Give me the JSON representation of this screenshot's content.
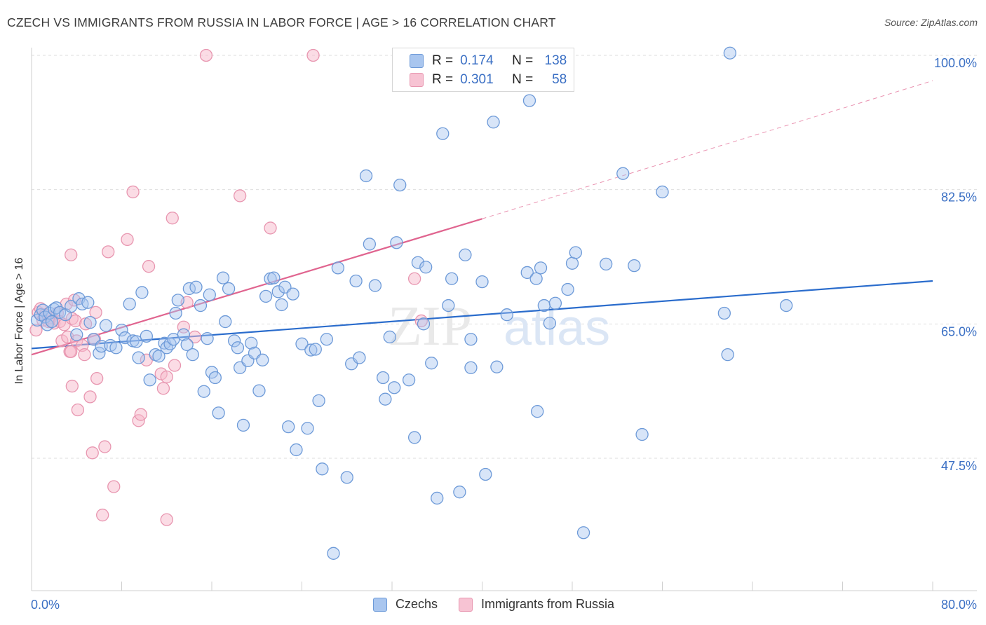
{
  "title": "CZECH VS IMMIGRANTS FROM RUSSIA IN LABOR FORCE | AGE > 16 CORRELATION CHART",
  "source": "Source: ZipAtlas.com",
  "watermark": {
    "zip": "ZIP",
    "atlas": "atlas"
  },
  "colors": {
    "czech_fill": "#a9c6ef",
    "czech_stroke": "#6d9ad8",
    "czech_line": "#2a6ccc",
    "russia_fill": "#f7b9cc",
    "russia_stroke": "#e896b0",
    "russia_line": "#e0648f",
    "tick_label": "#3a6fc4",
    "grid": "#dedede"
  },
  "legend": {
    "rows": [
      {
        "series": "Czechs",
        "r_label": "R =",
        "r_value": "0.174",
        "n_label": "N =",
        "n_value": "138"
      },
      {
        "series": "Immigrants from Russia",
        "r_label": "R =",
        "r_value": "0.301",
        "n_label": "N =",
        "n_value": "58"
      }
    ]
  },
  "bottom_legend": [
    "Czechs",
    "Immigrants from Russia"
  ],
  "chart_data": {
    "type": "scatter",
    "title": "CZECH VS IMMIGRANTS FROM RUSSIA IN LABOR FORCE | AGE > 16 CORRELATION CHART",
    "xlabel": "",
    "ylabel": "In Labor Force | Age > 16",
    "xlim": [
      0,
      80
    ],
    "ylim": [
      32,
      102
    ],
    "x_tick_labels": [
      "0.0%",
      "80.0%"
    ],
    "y_ticks": [
      47.5,
      65.0,
      82.5,
      100.0
    ],
    "y_tick_labels": [
      "47.5%",
      "65.0%",
      "82.5%",
      "100.0%"
    ],
    "grid": true,
    "legend_placement": "top-center",
    "series": [
      {
        "name": "Czechs",
        "trend": {
          "x": [
            0,
            80
          ],
          "y": [
            61.8,
            70.6
          ],
          "style": "solid"
        },
        "points": [
          [
            0.5,
            65.5
          ],
          [
            0.8,
            66.2
          ],
          [
            1.0,
            66.8
          ],
          [
            1.2,
            65.9
          ],
          [
            1.4,
            64.9
          ],
          [
            1.6,
            66.4
          ],
          [
            1.8,
            65.3
          ],
          [
            2.0,
            66.9
          ],
          [
            2.2,
            67.1
          ],
          [
            2.5,
            66.5
          ],
          [
            3.0,
            66.2
          ],
          [
            3.5,
            67.3
          ],
          [
            4.0,
            63.6
          ],
          [
            4.2,
            68.3
          ],
          [
            4.5,
            67.6
          ],
          [
            5.0,
            67.8
          ],
          [
            5.2,
            65.2
          ],
          [
            5.5,
            63.0
          ],
          [
            6.0,
            61.2
          ],
          [
            6.2,
            62.1
          ],
          [
            6.6,
            64.8
          ],
          [
            7.0,
            62.2
          ],
          [
            7.5,
            61.9
          ],
          [
            8.0,
            64.2
          ],
          [
            8.3,
            63.2
          ],
          [
            8.7,
            67.6
          ],
          [
            9.0,
            62.8
          ],
          [
            9.3,
            62.7
          ],
          [
            9.5,
            60.6
          ],
          [
            9.8,
            69.1
          ],
          [
            10.2,
            63.4
          ],
          [
            10.5,
            57.7
          ],
          [
            11.0,
            61.0
          ],
          [
            11.3,
            60.8
          ],
          [
            11.8,
            62.5
          ],
          [
            12.0,
            61.9
          ],
          [
            12.3,
            62.4
          ],
          [
            12.6,
            63.0
          ],
          [
            12.8,
            66.4
          ],
          [
            13.0,
            68.1
          ],
          [
            13.5,
            63.6
          ],
          [
            13.8,
            62.3
          ],
          [
            14.0,
            69.6
          ],
          [
            14.3,
            61.0
          ],
          [
            14.6,
            69.8
          ],
          [
            15.0,
            67.4
          ],
          [
            15.3,
            56.2
          ],
          [
            15.6,
            63.1
          ],
          [
            15.8,
            68.8
          ],
          [
            16.0,
            58.7
          ],
          [
            16.3,
            58.0
          ],
          [
            16.6,
            53.4
          ],
          [
            17.0,
            71.0
          ],
          [
            17.2,
            65.3
          ],
          [
            17.5,
            69.6
          ],
          [
            18.0,
            62.8
          ],
          [
            18.3,
            61.9
          ],
          [
            18.5,
            59.3
          ],
          [
            18.8,
            51.8
          ],
          [
            19.2,
            60.2
          ],
          [
            19.5,
            62.5
          ],
          [
            19.8,
            61.2
          ],
          [
            20.2,
            56.3
          ],
          [
            20.5,
            60.3
          ],
          [
            20.8,
            68.6
          ],
          [
            21.2,
            70.9
          ],
          [
            21.5,
            71.0
          ],
          [
            21.9,
            69.2
          ],
          [
            22.2,
            67.5
          ],
          [
            22.5,
            69.8
          ],
          [
            22.8,
            51.6
          ],
          [
            23.2,
            68.9
          ],
          [
            23.5,
            48.6
          ],
          [
            24.0,
            62.4
          ],
          [
            24.5,
            51.4
          ],
          [
            24.8,
            61.6
          ],
          [
            25.2,
            61.7
          ],
          [
            25.5,
            55.0
          ],
          [
            25.8,
            46.1
          ],
          [
            26.2,
            63.0
          ],
          [
            26.8,
            35.1
          ],
          [
            27.2,
            72.3
          ],
          [
            28.0,
            45.0
          ],
          [
            28.4,
            59.8
          ],
          [
            28.8,
            70.6
          ],
          [
            29.1,
            60.6
          ],
          [
            29.7,
            84.3
          ],
          [
            30.0,
            75.4
          ],
          [
            30.5,
            70.0
          ],
          [
            31.2,
            58.0
          ],
          [
            31.4,
            55.2
          ],
          [
            31.8,
            63.3
          ],
          [
            32.2,
            56.7
          ],
          [
            32.4,
            75.6
          ],
          [
            32.7,
            83.1
          ],
          [
            33.5,
            57.7
          ],
          [
            34.0,
            50.2
          ],
          [
            34.3,
            73.0
          ],
          [
            34.8,
            65.0
          ],
          [
            35.0,
            72.4
          ],
          [
            35.5,
            59.9
          ],
          [
            36.0,
            42.3
          ],
          [
            36.5,
            89.8
          ],
          [
            37.0,
            67.4
          ],
          [
            37.3,
            70.9
          ],
          [
            38.0,
            43.1
          ],
          [
            38.5,
            74.0
          ],
          [
            39.0,
            63.0
          ],
          [
            39.0,
            59.3
          ],
          [
            40.0,
            70.5
          ],
          [
            40.3,
            45.4
          ],
          [
            41.0,
            91.3
          ],
          [
            41.3,
            59.4
          ],
          [
            42.2,
            66.2
          ],
          [
            44.0,
            71.7
          ],
          [
            44.2,
            94.1
          ],
          [
            44.8,
            70.9
          ],
          [
            44.9,
            53.6
          ],
          [
            45.2,
            72.3
          ],
          [
            45.5,
            67.4
          ],
          [
            46.0,
            65.1
          ],
          [
            46.5,
            67.7
          ],
          [
            47.6,
            69.5
          ],
          [
            48.0,
            72.9
          ],
          [
            48.3,
            74.3
          ],
          [
            49.0,
            37.8
          ],
          [
            51.0,
            72.8
          ],
          [
            52.5,
            84.6
          ],
          [
            53.5,
            72.6
          ],
          [
            54.2,
            50.6
          ],
          [
            56.0,
            82.2
          ],
          [
            61.5,
            66.4
          ],
          [
            61.8,
            61.0
          ],
          [
            62.0,
            100.3
          ],
          [
            67.0,
            67.4
          ]
        ]
      },
      {
        "name": "Immigrants from Russia",
        "trend": {
          "x": [
            0,
            40
          ],
          "y": [
            61.0,
            78.7
          ],
          "style": "solid",
          "extension": {
            "x": [
              40,
              80
            ],
            "y": [
              78.7,
              96.7
            ],
            "style": "dashed"
          }
        },
        "points": [
          [
            0.4,
            64.2
          ],
          [
            0.6,
            66.5
          ],
          [
            0.8,
            67.0
          ],
          [
            1.0,
            65.5
          ],
          [
            1.2,
            66.2
          ],
          [
            1.5,
            65.3
          ],
          [
            1.7,
            65.8
          ],
          [
            2.0,
            65.1
          ],
          [
            2.3,
            66.4
          ],
          [
            2.5,
            65.3
          ],
          [
            2.7,
            62.8
          ],
          [
            2.9,
            64.9
          ],
          [
            3.1,
            67.6
          ],
          [
            3.2,
            63.3
          ],
          [
            3.4,
            61.4
          ],
          [
            3.6,
            65.7
          ],
          [
            3.8,
            68.1
          ],
          [
            3.5,
            61.4
          ],
          [
            3.5,
            74.0
          ],
          [
            3.6,
            56.9
          ],
          [
            3.9,
            65.4
          ],
          [
            4.0,
            62.8
          ],
          [
            4.1,
            53.8
          ],
          [
            4.5,
            62.2
          ],
          [
            4.7,
            61.0
          ],
          [
            4.8,
            65.0
          ],
          [
            5.2,
            55.5
          ],
          [
            5.4,
            48.2
          ],
          [
            5.6,
            63.0
          ],
          [
            5.7,
            66.5
          ],
          [
            5.8,
            57.9
          ],
          [
            6.3,
            40.1
          ],
          [
            6.5,
            49.0
          ],
          [
            6.8,
            74.4
          ],
          [
            7.3,
            43.8
          ],
          [
            8.5,
            76.0
          ],
          [
            9.0,
            82.2
          ],
          [
            9.5,
            52.4
          ],
          [
            9.7,
            53.2
          ],
          [
            10.2,
            60.3
          ],
          [
            10.4,
            72.5
          ],
          [
            11.5,
            58.5
          ],
          [
            11.7,
            56.6
          ],
          [
            12.0,
            58.1
          ],
          [
            12.0,
            39.5
          ],
          [
            12.5,
            78.8
          ],
          [
            12.7,
            59.6
          ],
          [
            13.5,
            64.6
          ],
          [
            13.8,
            67.8
          ],
          [
            14.5,
            63.3
          ],
          [
            15.5,
            100.0
          ],
          [
            18.5,
            81.7
          ],
          [
            21.2,
            77.5
          ],
          [
            25.0,
            100.0
          ],
          [
            34.0,
            70.9
          ],
          [
            34.6,
            65.4
          ]
        ]
      }
    ]
  }
}
